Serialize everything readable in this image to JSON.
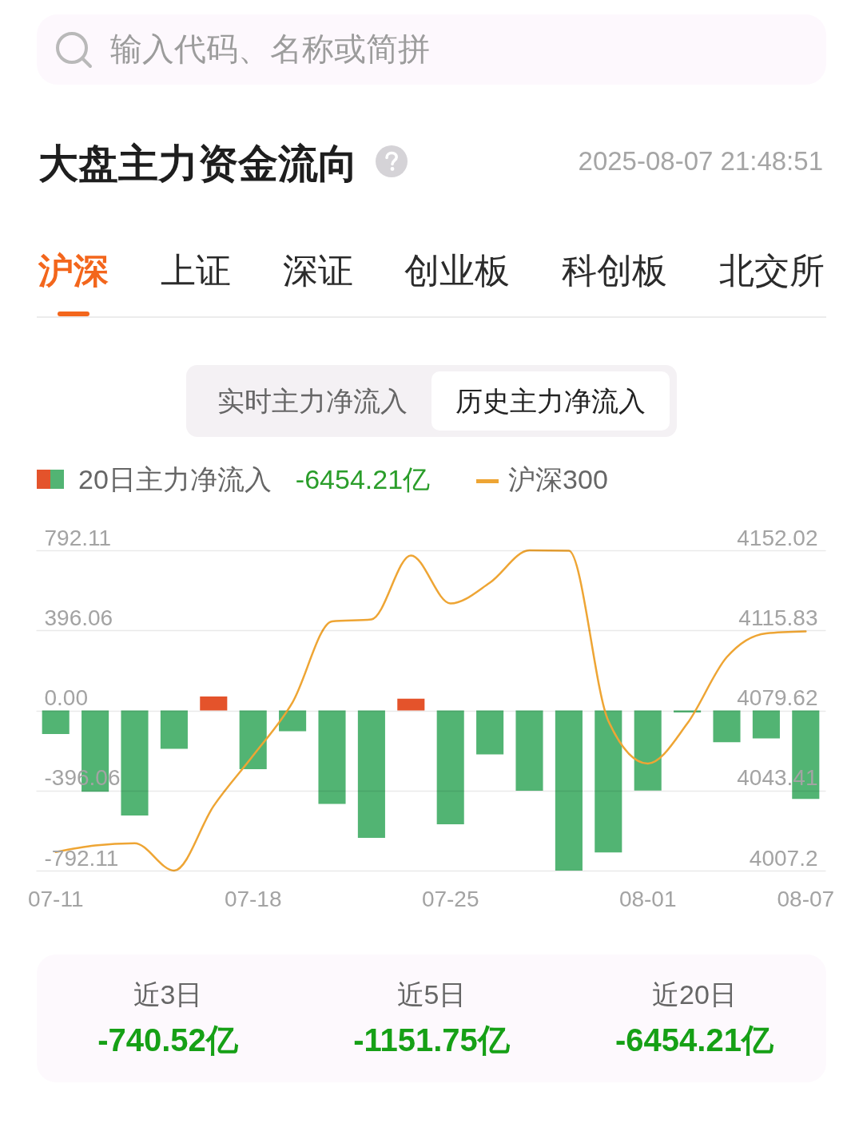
{
  "chart_data": {
    "type": "bar",
    "title": "大盘主力资金流向",
    "subtitle": "2025-08-07 21:48:51",
    "categories": [
      "07-11",
      null,
      null,
      null,
      null,
      "07-18",
      null,
      null,
      null,
      null,
      "07-25",
      null,
      null,
      null,
      null,
      "08-01",
      null,
      null,
      null,
      "08-07"
    ],
    "series": [
      {
        "name": "20日主力净流入",
        "type": "bar",
        "colors": [
          "#52b473",
          "#52b473",
          "#52b473",
          "#52b473",
          "#e4532b",
          "#52b473",
          "#52b473",
          "#52b473",
          "#52b473",
          "#e4532b",
          "#52b473",
          "#52b473",
          "#52b473",
          "#52b473",
          "#52b473",
          "#52b473",
          "#52b473",
          "#52b473",
          "#52b473",
          "#52b473"
        ],
        "values": [
          -117,
          -402,
          -520,
          -190,
          69,
          -290,
          -103,
          -462,
          -630,
          58,
          -563,
          -217,
          -397,
          -792,
          -702,
          -396,
          -10,
          -157,
          -138,
          -438
        ]
      },
      {
        "name": "沪深300",
        "type": "line",
        "axis": "y2",
        "color": "#eea534",
        "values": [
          4015.6,
          4018.6,
          4019.6,
          4007.2,
          4036.4,
          4059.2,
          4083.3,
          4119.9,
          4120.8,
          4149.7,
          4128.0,
          4137.4,
          4152.0,
          4151.8,
          4074.9,
          4055.6,
          4073.7,
          4103.7,
          4114.5,
          4115.4
        ]
      }
    ],
    "ylim": [
      -792.11,
      792.11
    ],
    "yticks": [
      -792.11,
      -396.06,
      {
        "value": 0,
        "label": "0.00"
      },
      396.06,
      792.11
    ],
    "y2lim": [
      4007.2,
      4152.02
    ],
    "y2ticks": [
      4007.2,
      4043.41,
      4079.62,
      4115.83,
      4152.02
    ],
    "grid": "y",
    "legend": "top left",
    "line_style": "solid",
    "annotations": [
      "输入代码、名称或简拼",
      "沪深",
      "上证",
      "深证",
      "创业板",
      "科创板",
      "北交所",
      "实时主力净流入",
      "历史主力净流入",
      "-6454.21亿",
      "近3日",
      "-740.52亿",
      "近5日",
      "-1151.75亿",
      "近20日",
      "-6454.21亿"
    ]
  }
}
